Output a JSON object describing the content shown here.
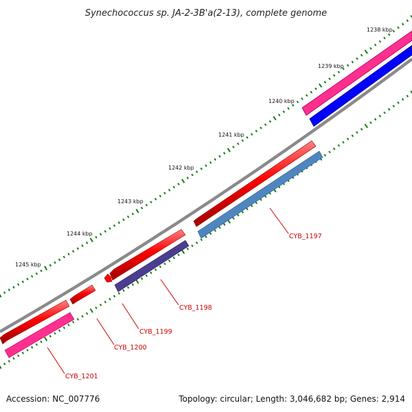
{
  "title": "Synechococcus sp. JA-2-3B'a(2-13), complete genome",
  "footer": {
    "accession": "Accession: NC_007776",
    "summary": "Topology: circular; Length: 3,046,682 bp; Genes: 2,914"
  },
  "colors": {
    "backbone": "#8a8a8a",
    "cds": "#ff0000",
    "gene_magenta": "#ff2f8f",
    "gene_blue": "#0000ff",
    "gene_steel": "#4f86c0",
    "gene_indigo": "#4b3d8f",
    "tick": "#137a13",
    "label": "#cc0000"
  },
  "ticks": [
    {
      "label": "1238 kbp"
    },
    {
      "label": "1239 kbp"
    },
    {
      "label": "1240 kbp"
    },
    {
      "label": "1241 kbp"
    },
    {
      "label": "1242 kbp"
    },
    {
      "label": "1243 kbp"
    },
    {
      "label": "1244 kbp"
    },
    {
      "label": "1245 kbp"
    }
  ],
  "gene_labels": [
    {
      "name": "CYB_1197"
    },
    {
      "name": "CYB_1198"
    },
    {
      "name": "CYB_1199"
    },
    {
      "name": "CYB_1200"
    },
    {
      "name": "CYB_1201"
    }
  ]
}
